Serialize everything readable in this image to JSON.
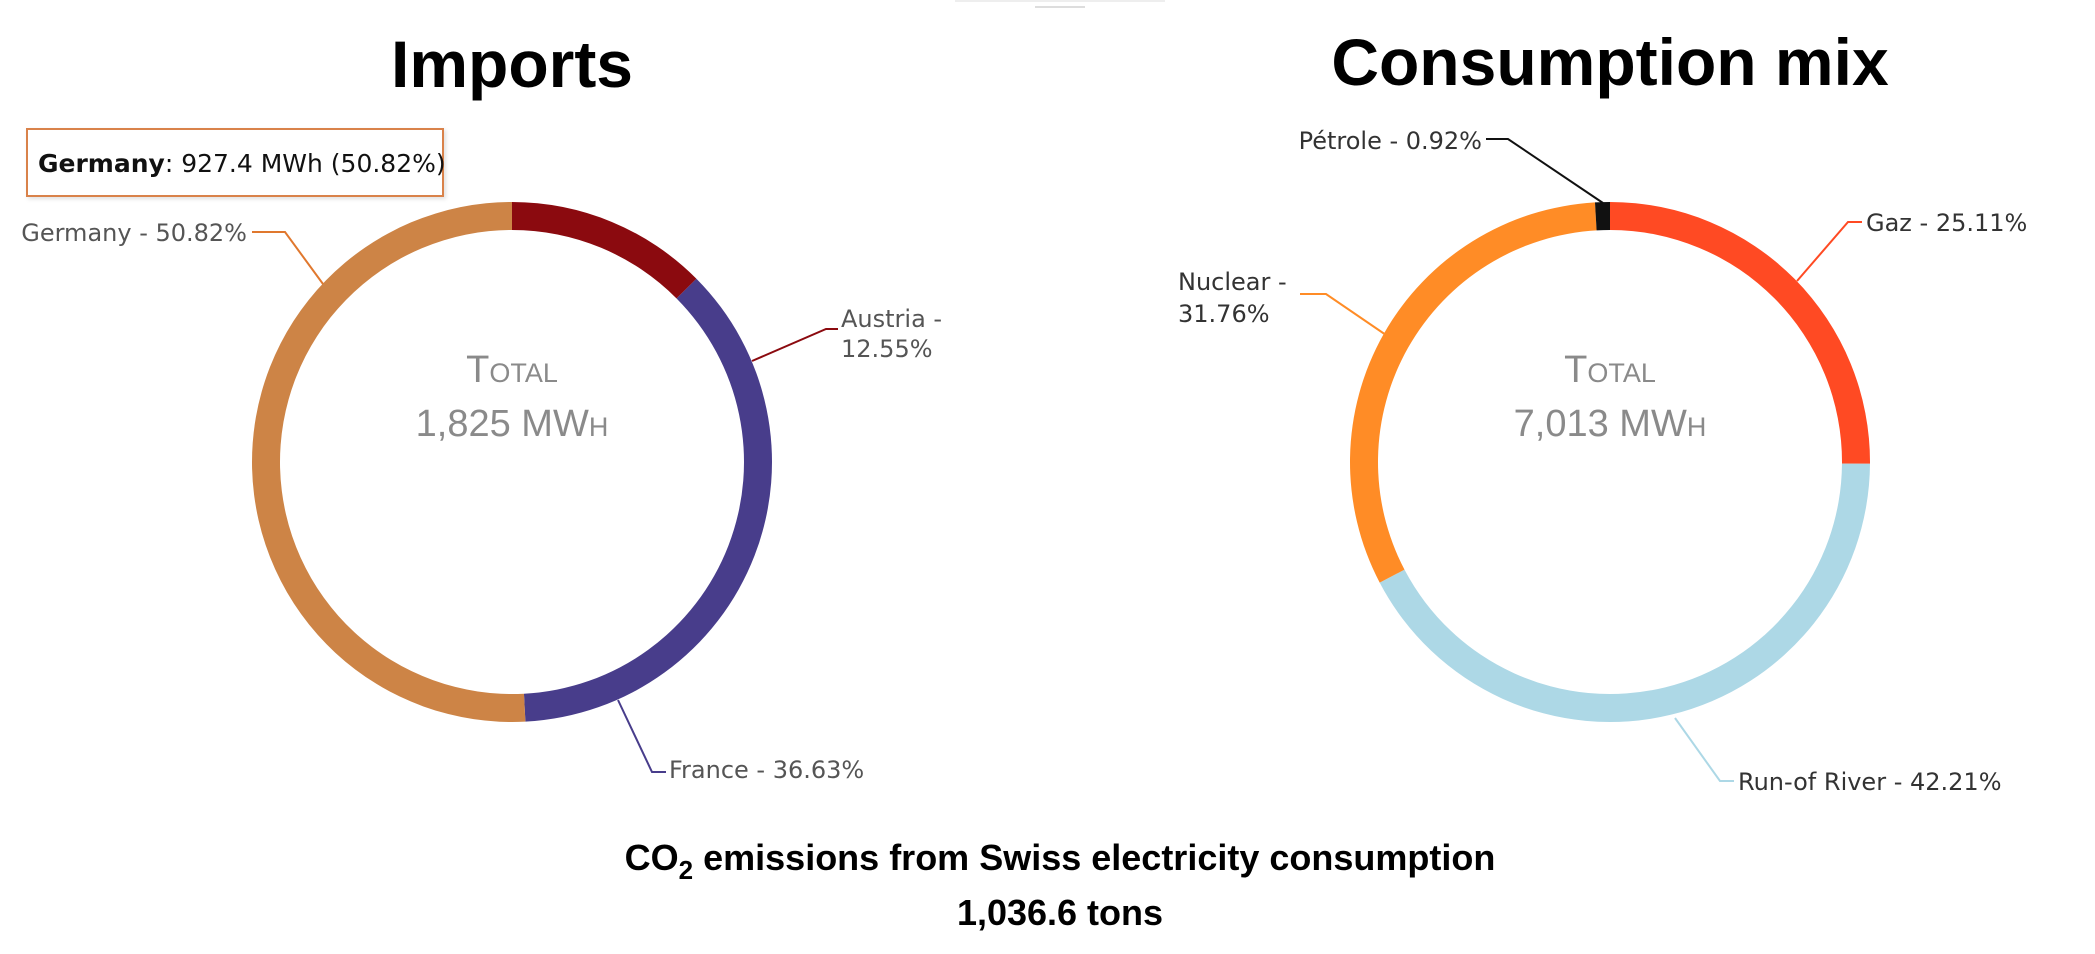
{
  "chart_data": [
    {
      "type": "pie",
      "variant": "donut",
      "title": "Imports",
      "center_label": "Total",
      "center_value": "1,825 MWh",
      "slices": [
        {
          "name": "Austria",
          "label": "Austria - 12.55%",
          "value": 12.55,
          "color": "#8b0a0f"
        },
        {
          "name": "France",
          "label": "France - 36.63%",
          "value": 36.63,
          "color": "#483d8b"
        },
        {
          "name": "Germany",
          "label": "Germany - 50.82%",
          "value": 50.82,
          "color": "#cd8446"
        }
      ],
      "tooltip": {
        "name": "Germany",
        "text": ": 927.4 MWh (50.82%)",
        "border_color": "#d9824a"
      }
    },
    {
      "type": "pie",
      "variant": "donut",
      "title": "Consumption mix",
      "center_label": "Total",
      "center_value": "7,013 MWh",
      "slices": [
        {
          "name": "Gaz",
          "label": "Gaz - 25.11%",
          "value": 25.11,
          "color": "#ff4a23"
        },
        {
          "name": "Run-of River",
          "label": "Run-of River - 42.21%",
          "value": 42.21,
          "color": "#add8e6"
        },
        {
          "name": "Nuclear",
          "label": "Nuclear - 31.76%",
          "value": 31.76,
          "color": "#ff8c26"
        },
        {
          "name": "Pétrole",
          "label": "Pétrole - 0.92%",
          "value": 0.92,
          "color": "#111111"
        }
      ]
    }
  ],
  "footer": {
    "title_prefix": "CO",
    "title_sub": "2",
    "title_suffix": " emissions from Swiss electricity consumption",
    "value": "1,036.6 tons"
  }
}
